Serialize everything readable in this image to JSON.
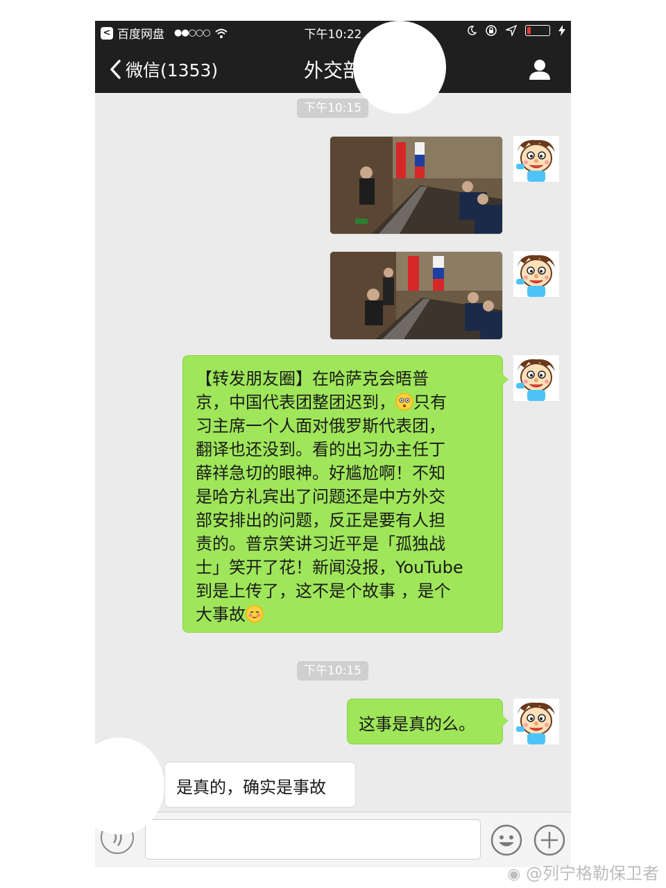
{
  "status_bar": {
    "back_app": "百度网盘",
    "signal": "●●○○○",
    "time": "下午10:22",
    "battery_level": 0.15
  },
  "nav": {
    "back_label": "微信(1353)",
    "title": "外交部"
  },
  "timestamps": [
    "下午10:15",
    "下午10:15"
  ],
  "messages": {
    "long_text_1": "【转发朋友圈】在哈萨克会晤普\n京，中国代表团整团迟到，",
    "long_text_2": "只有\n习主席一个人面对俄罗斯代表团，\n翻译也还没到。看的出习办主任丁\n薛祥急切的眼神。好尴尬啊！不知\n是哈方礼宾出了问题还是中方外交\n部安排出的问题，反正是要有人担\n责的。普京笑讲习近平是「孤独战\n士」笑开了花！新闻没报，YouTube\n到是上传了，这不是个故事 ，是个\n大事故",
    "question": "这事是真的么。",
    "reply": "是真的，确实是事故"
  },
  "watermark": "@列宁格勒保卫者",
  "colors": {
    "bar_bg": "#1f1f1f",
    "chat_bg": "#ebebeb",
    "bubble_green": "#9fe65a",
    "bubble_white": "#ffffff"
  },
  "icons": [
    "back-chip-icon",
    "wifi-icon",
    "moon-icon",
    "lock-rotation-icon",
    "location-icon",
    "battery-icon",
    "charging-icon",
    "chevron-left-icon",
    "user-icon",
    "voice-icon",
    "emoji-icon",
    "plus-icon"
  ]
}
